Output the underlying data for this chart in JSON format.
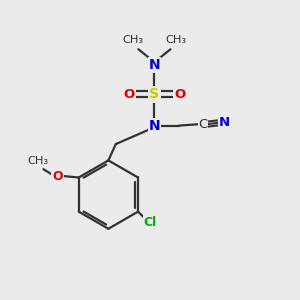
{
  "bg_color": "#ebebeb",
  "colors": {
    "N": "#0000dd",
    "O": "#dd0000",
    "S": "#cccc00",
    "C": "#333333",
    "Cl": "#00aa00",
    "bond": "#333333"
  },
  "figsize": [
    3.0,
    3.0
  ],
  "dpi": 100,
  "xlim": [
    0,
    10
  ],
  "ylim": [
    0,
    10
  ]
}
